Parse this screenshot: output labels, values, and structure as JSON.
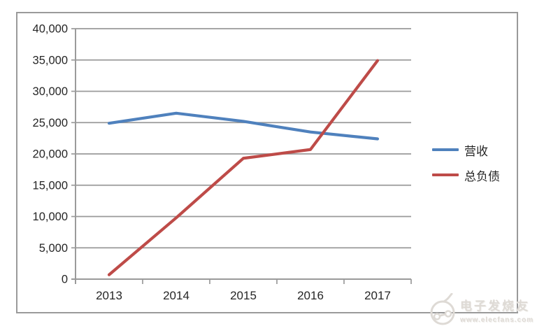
{
  "chart_data": {
    "type": "line",
    "categories": [
      "2013",
      "2014",
      "2015",
      "2016",
      "2017"
    ],
    "series": [
      {
        "key": "revenue",
        "name": "营收",
        "color": "#4F81BD",
        "values": [
          24900,
          26500,
          25200,
          23500,
          22400
        ]
      },
      {
        "key": "total-liabilities",
        "name": "总负债",
        "color": "#BE4B48",
        "values": [
          700,
          9800,
          19300,
          20700,
          34900
        ]
      }
    ],
    "ylim": [
      0,
      40000
    ],
    "ytick_step": 5000,
    "ytick_labels": [
      "0",
      "5,000",
      "10,000",
      "15,000",
      "20,000",
      "25,000",
      "30,000",
      "35,000",
      "40,000"
    ],
    "grid": true,
    "legend_position": "right",
    "axis_color": "#9a9a9a",
    "gridline_color": "#9a9a9a",
    "label_color": "#262626"
  },
  "watermark": {
    "brand": "电子发烧友",
    "url": "www.elecfans.com"
  }
}
